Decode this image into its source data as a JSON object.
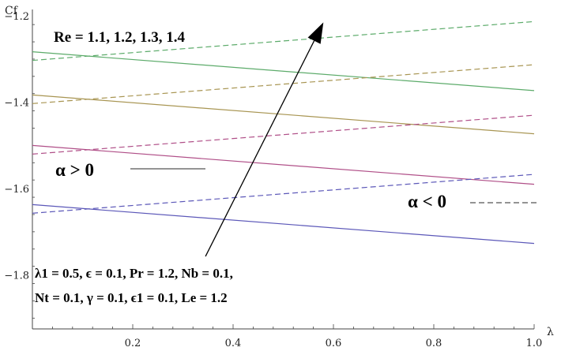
{
  "chart_data": {
    "type": "line",
    "xlabel": "λ",
    "ylabel": "Cf",
    "xlim": [
      0,
      1.0
    ],
    "ylim": [
      -1.925,
      -1.185
    ],
    "x_ticks": [
      0.2,
      0.4,
      0.6,
      0.8,
      1.0
    ],
    "x_tick_labels": [
      "0.2",
      "0.4",
      "0.6",
      "0.8",
      "1.0"
    ],
    "y_ticks": [
      -1.2,
      -1.4,
      -1.6,
      -1.8
    ],
    "y_tick_labels": [
      "−1.2",
      "−1.4",
      "−1.6",
      "−1.8"
    ],
    "grid": false,
    "x": [
      0.0,
      1.0
    ],
    "series": [
      {
        "re": 1.1,
        "alpha": "positive",
        "style": "solid",
        "color": "#5b57b8",
        "values": [
          -1.637,
          -1.727
        ]
      },
      {
        "re": 1.2,
        "alpha": "positive",
        "style": "solid",
        "color": "#b04f88",
        "values": [
          -1.5,
          -1.59
        ]
      },
      {
        "re": 1.3,
        "alpha": "positive",
        "style": "solid",
        "color": "#a89552",
        "values": [
          -1.383,
          -1.473
        ]
      },
      {
        "re": 1.4,
        "alpha": "positive",
        "style": "solid",
        "color": "#5cab6a",
        "values": [
          -1.283,
          -1.373
        ]
      },
      {
        "re": 1.1,
        "alpha": "negative",
        "style": "dashed",
        "color": "#5b57b8",
        "values": [
          -1.657,
          -1.567
        ]
      },
      {
        "re": 1.2,
        "alpha": "negative",
        "style": "dashed",
        "color": "#b04f88",
        "values": [
          -1.52,
          -1.43
        ]
      },
      {
        "re": 1.3,
        "alpha": "negative",
        "style": "dashed",
        "color": "#a89552",
        "values": [
          -1.403,
          -1.313
        ]
      },
      {
        "re": 1.4,
        "alpha": "negative",
        "style": "dashed",
        "color": "#5cab6a",
        "values": [
          -1.303,
          -1.213
        ]
      }
    ],
    "arrow": {
      "from": [
        0.345,
        -1.757
      ],
      "to": [
        0.58,
        -1.215
      ],
      "color": "#000000"
    },
    "annotations": {
      "re_label": "Re = 1.1, 1.2, 1.3, 1.4",
      "alpha_pos_label": "α > 0",
      "alpha_neg_label": "α < 0",
      "params_line1": "λ1 = 0.5, ϵ = 0.1, Pr = 1.2, Nb = 0.1,",
      "params_line2": "Nt = 0.1, γ = 0.1, ϵ1 = 0.1, Le = 1.2"
    }
  }
}
